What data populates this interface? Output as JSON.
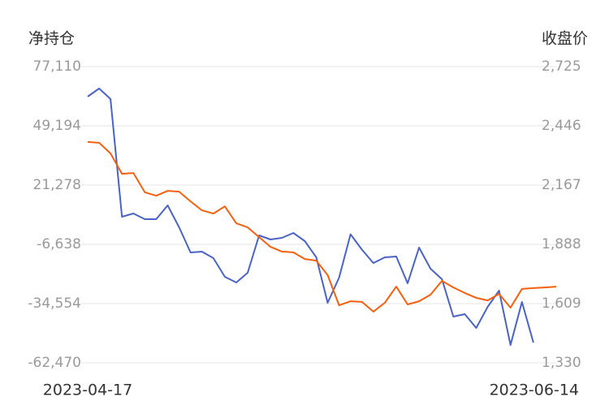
{
  "chart_data": {
    "type": "line",
    "y_label": "净持仓",
    "y2_label": "收盘价",
    "categories": [
      "2023-04-17",
      null,
      null,
      null,
      null,
      null,
      null,
      null,
      null,
      null,
      null,
      null,
      null,
      null,
      null,
      null,
      null,
      null,
      null,
      null,
      null,
      null,
      null,
      null,
      null,
      null,
      null,
      null,
      null,
      null,
      null,
      null,
      null,
      null,
      null,
      null,
      null,
      null,
      null,
      null,
      null,
      "2023-06-14"
    ],
    "ylim": [
      -62470,
      77110
    ],
    "yticks": [
      {
        "value": 77110,
        "label": "77,110"
      },
      {
        "value": 49194,
        "label": "49,194"
      },
      {
        "value": 21278,
        "label": "21,278"
      },
      {
        "value": -6638,
        "label": "-6,638"
      },
      {
        "value": -34554,
        "label": "-34,554"
      },
      {
        "value": -62470,
        "label": "-62,470"
      }
    ],
    "y2lim": [
      1330,
      2725
    ],
    "y2ticks": [
      {
        "value": 2725,
        "label": "2,725"
      },
      {
        "value": 2446,
        "label": "2,446"
      },
      {
        "value": 2167,
        "label": "2,167"
      },
      {
        "value": 1888,
        "label": "1,888"
      },
      {
        "value": 1609,
        "label": "1,609"
      },
      {
        "value": 1330,
        "label": "1,330"
      }
    ],
    "grid": true,
    "series": [
      {
        "name": "净持仓",
        "color": "#4a63c4",
        "values": [
          62960,
          66790,
          61814,
          6366,
          7896,
          5219,
          5219,
          11720,
          1395,
          -10460,
          -10077,
          -13137,
          -21932,
          -24609,
          -20020,
          -2430,
          -4342,
          -3577,
          -1283,
          -5107,
          -12755,
          -34170,
          -22315,
          -1900,
          -9170,
          -15430,
          -12755,
          -12370,
          -24990,
          -8170,
          -18110,
          -23080,
          -40670,
          -39530,
          -46030,
          -36090,
          -28440,
          -54050,
          -33790,
          -52900,
          null,
          null
        ]
      },
      {
        "name": "收盘价",
        "color": "#f5600f",
        "axis": "y2",
        "values": [
          2370,
          2366,
          2316,
          2220,
          2224,
          2133,
          2117,
          2140,
          2136,
          2090,
          2048,
          2033,
          2067,
          1987,
          1968,
          1922,
          1876,
          1854,
          1850,
          1819,
          1811,
          1743,
          1601,
          1620,
          1617,
          1571,
          1613,
          1689,
          1605,
          1620,
          1651,
          1716,
          1685,
          1659,
          1636,
          1624,
          1655,
          1590,
          1678,
          1682,
          1685,
          1689
        ]
      }
    ]
  }
}
